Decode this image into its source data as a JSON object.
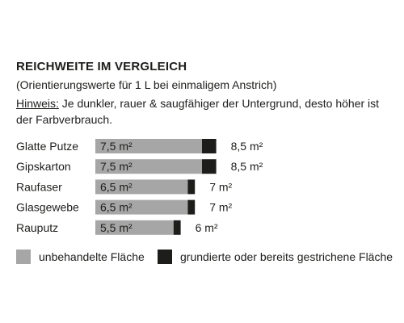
{
  "chart_data": {
    "type": "bar",
    "stacked": true,
    "orientation": "horizontal",
    "title": "REICHWEITE IM VERGLEICH",
    "subtitle": "(Orientierungswerte für 1 L bei einmaligem Anstrich)",
    "note_label": "Hinweis:",
    "note_text": " Je dunkler, rauer & saugfähiger der Untergrund, desto höher ist der Farbverbrauch.",
    "categories": [
      "Glatte Putze",
      "Gipskarton",
      "Raufaser",
      "Glasgewebe",
      "Rauputz"
    ],
    "unit": "m²",
    "series": [
      {
        "name": "unbehandelte Fläche",
        "color": "#a7a6a6",
        "values": [
          7.5,
          7.5,
          6.5,
          6.5,
          5.5
        ],
        "labels": [
          "7,5 m²",
          "7,5 m²",
          "6,5 m²",
          "6,5 m²",
          "5,5 m²"
        ]
      },
      {
        "name": "grundierte oder bereits gestrichene Fläche",
        "color": "#1d1d1b",
        "values": [
          8.5,
          8.5,
          7,
          7,
          6
        ],
        "labels": [
          "8,5 m²",
          "8,5 m²",
          "7 m²",
          "7 m²",
          "6 m²"
        ]
      }
    ],
    "grid": false,
    "legend_position": "bottom"
  }
}
